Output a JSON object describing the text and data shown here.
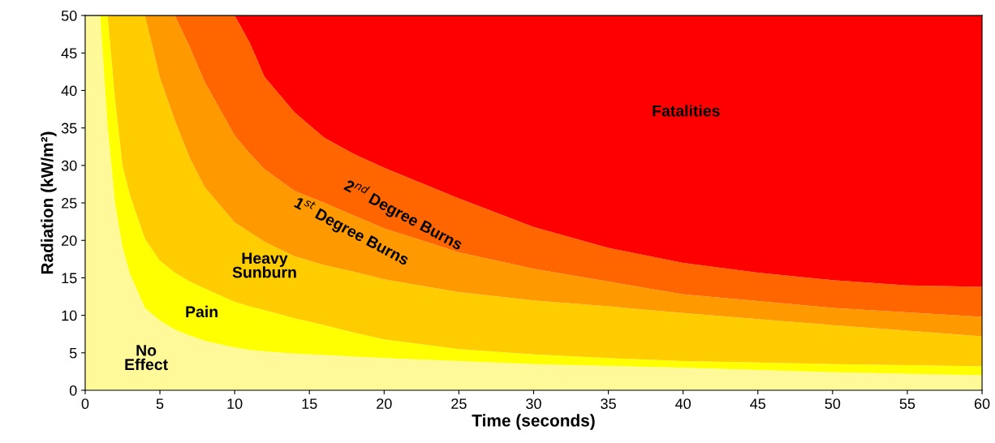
{
  "chart_data": {
    "type": "area",
    "stacked": true,
    "xlabel": "Time (seconds)",
    "ylabel": "Radiation (kW/m²)",
    "xlim": [
      0,
      60
    ],
    "xticks": [
      0,
      5,
      10,
      15,
      20,
      25,
      30,
      35,
      40,
      45,
      50,
      55,
      60
    ],
    "ylim": [
      0,
      50
    ],
    "yticks": [
      0,
      5,
      10,
      15,
      20,
      25,
      30,
      35,
      40,
      45,
      50
    ],
    "grid": false,
    "x": [
      0,
      1,
      1.5,
      2,
      2.5,
      3,
      4,
      5,
      6,
      7,
      8,
      10,
      11,
      12,
      14,
      16,
      18,
      20,
      25,
      30,
      35,
      40,
      45,
      50,
      55,
      60
    ],
    "series": [
      {
        "color": "#fff99a",
        "values": [
          50,
          50,
          35.3,
          24.9,
          19.1,
          15.5,
          11,
          9.3,
          8.1,
          7.3,
          6.6,
          5.7,
          5.4,
          5.2,
          4.9,
          4.7,
          4.5,
          4.3,
          3.9,
          3.5,
          3.25,
          3,
          2.7,
          2.4,
          2.2,
          2
        ]
      },
      {
        "color": "#ffff00",
        "values": [
          0,
          0,
          14.7,
          13.9,
          10.9,
          10.5,
          9.2,
          8,
          7.6,
          7.2,
          7,
          6.1,
          5.8,
          5.5,
          4.7,
          4,
          3.2,
          2.5,
          1.6,
          1.3,
          1.05,
          0.9,
          1,
          1.1,
          1.15,
          1.2
        ]
      },
      {
        "color": "#ffcc00",
        "values": [
          0,
          0,
          0,
          11.2,
          20,
          24,
          29.8,
          24.4,
          20.3,
          16.5,
          13.5,
          10.6,
          9.9,
          9.1,
          8.3,
          8,
          8.1,
          8,
          7.6,
          7.2,
          6.9,
          6.4,
          5.8,
          5.2,
          4.6,
          4
        ]
      },
      {
        "color": "#ff9900",
        "values": [
          0,
          0,
          0,
          0,
          0,
          0,
          0,
          8.3,
          14,
          14.8,
          14,
          11.6,
          10.5,
          9.7,
          8.7,
          8.3,
          7.5,
          6.8,
          5.3,
          4.2,
          3.3,
          2.5,
          2.4,
          2.3,
          2.45,
          2.6
        ]
      },
      {
        "color": "#ff6600",
        "values": [
          0,
          0,
          0,
          0,
          0,
          0,
          0,
          0,
          0,
          4.2,
          8.9,
          16,
          14.8,
          12.3,
          10.5,
          8.7,
          8.2,
          8.1,
          7.2,
          5.6,
          4.5,
          4.2,
          3.8,
          3.7,
          3.6,
          4
        ]
      },
      {
        "color": "#ff0000",
        "values": [
          0,
          0,
          0,
          0,
          0,
          0,
          0,
          0,
          0,
          0,
          0,
          0,
          3.6,
          8.2,
          12.9,
          16.3,
          18.5,
          20.3,
          24.4,
          28.2,
          31,
          33,
          34.3,
          35.3,
          36,
          36.2
        ]
      }
    ],
    "annotations": [
      "Fatalities",
      "2$^{nd}$ Degree Burns",
      "1$^{st}$ Degree Burns",
      "Heavy\nSunburn",
      "Pain",
      "No\nEffect"
    ]
  }
}
